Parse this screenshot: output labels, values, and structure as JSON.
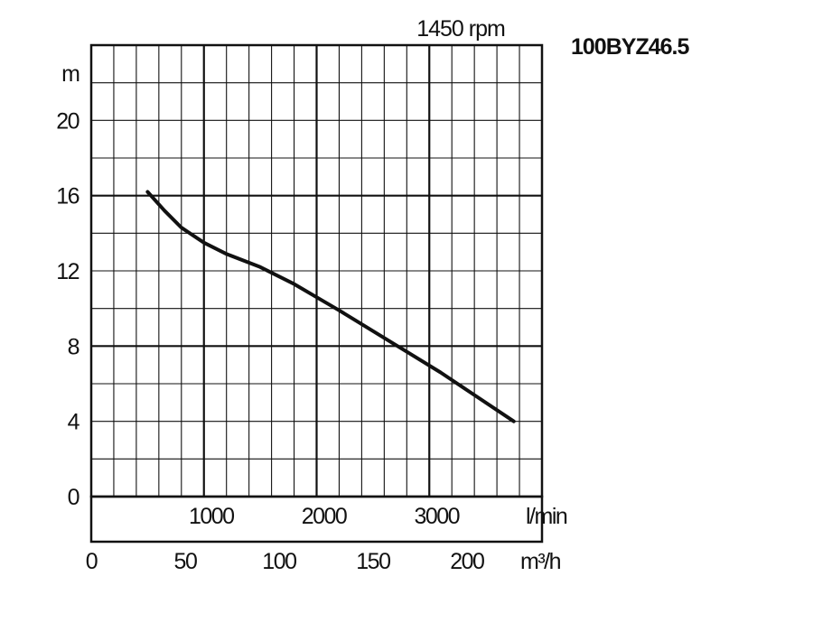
{
  "chart_data": {
    "type": "line",
    "model": "100BYZ46.5",
    "speed_label": "1450 rpm",
    "y_unit": "m",
    "x_unit_primary": "l/min",
    "x_unit_secondary": "m³/h",
    "ylim": [
      0,
      24
    ],
    "xlim_lmin": [
      0,
      4000
    ],
    "y_ticks": [
      0,
      4,
      8,
      12,
      16,
      20
    ],
    "x_ticks_lmin": [
      1000,
      2000,
      3000
    ],
    "x_ticks_m3h": [
      0,
      50,
      100,
      150,
      200
    ],
    "grid": true,
    "series": [
      {
        "x_lmin": [
          500,
          650,
          800,
          1000,
          1200,
          1500,
          1800,
          2000,
          2200,
          2500,
          2800,
          3100,
          3400,
          3750
        ],
        "y_m": [
          16.2,
          15.2,
          14.3,
          13.5,
          12.9,
          12.2,
          11.3,
          10.6,
          9.9,
          8.8,
          7.7,
          6.6,
          5.4,
          4.0
        ]
      }
    ]
  }
}
